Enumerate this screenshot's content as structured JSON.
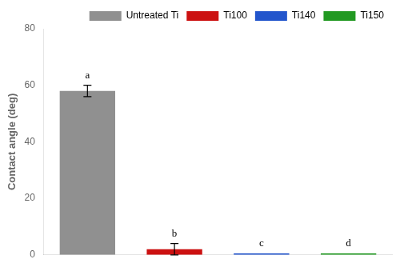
{
  "chart_data": {
    "type": "bar",
    "categories": [
      "Untreated Ti",
      "Ti100",
      "Ti140",
      "Ti150"
    ],
    "values": [
      58.0,
      2.0,
      0.5,
      0.5
    ],
    "errors": [
      2.0,
      2.0,
      0.0,
      0.0
    ],
    "colors": [
      "#909090",
      "#cc1111",
      "#2255cc",
      "#229922"
    ],
    "ylabel": "Contact angle (deg)",
    "ylim": [
      0,
      80
    ],
    "yticks": [
      0,
      20,
      40,
      60,
      80
    ],
    "annotations": [
      "a",
      "b",
      "c",
      "d"
    ],
    "legend": "upper right",
    "grid": false,
    "tick_labels": "y"
  }
}
